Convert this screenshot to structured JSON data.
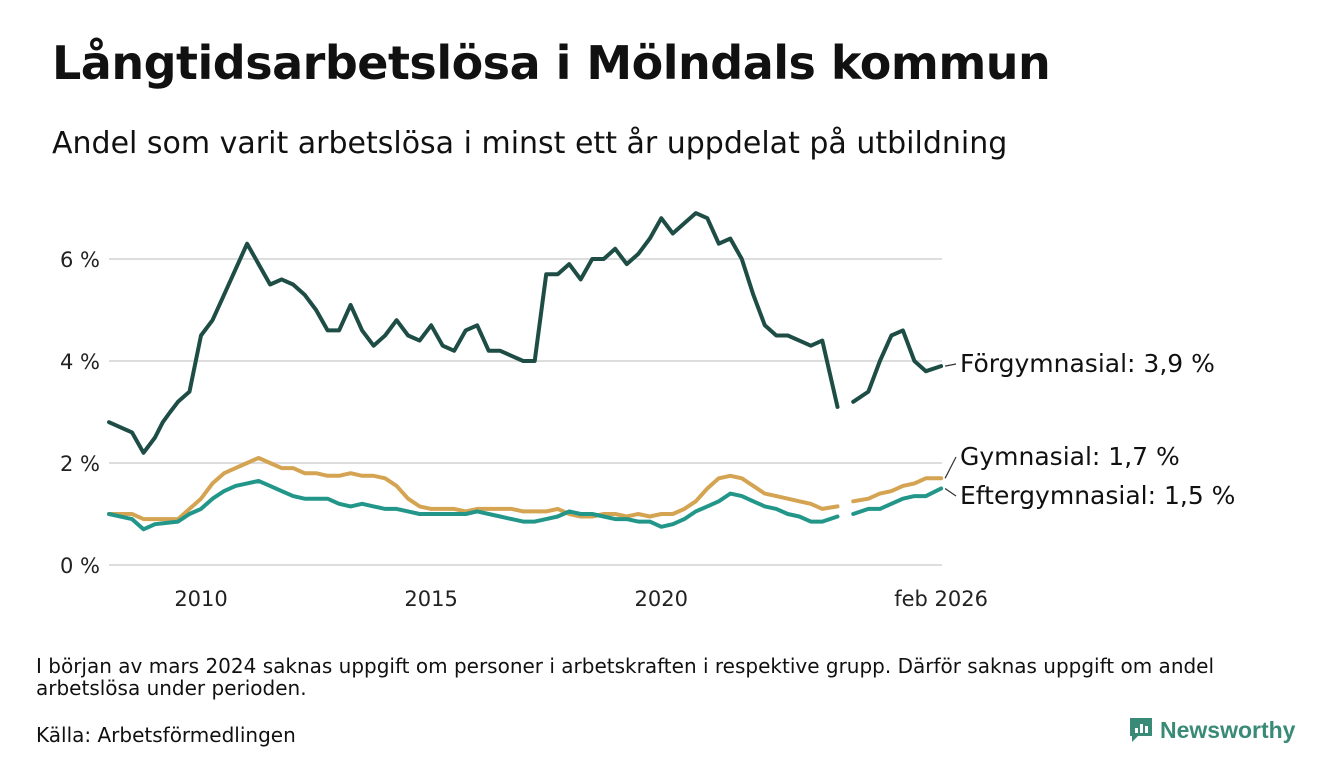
{
  "header": {
    "title": "Långtidsarbetslösa i Mölndals kommun",
    "subtitle": "Andel som varit arbetslösa i minst ett år uppdelat på utbildning"
  },
  "footer": {
    "note": "I början av mars 2024 saknas uppgift om personer i arbetskraften i respektive grupp. Därför saknas uppgift om andel arbetslösa under perioden.",
    "source": "Källa: Arbetsförmedlingen",
    "brand": "Newsworthy"
  },
  "colors": {
    "forgymnasial": "#1e4d46",
    "gymnasial": "#d4a452",
    "eftergymnasial": "#23968a",
    "grid": "#dddddd",
    "brand": "#3a8a78"
  },
  "chart_data": {
    "type": "line",
    "title": "Långtidsarbetslösa i Mölndals kommun",
    "xlabel": "",
    "ylabel": "",
    "xlim": [
      2008.0,
      2026.1
    ],
    "ylim": [
      0,
      7
    ],
    "yticks": [
      0,
      2,
      4,
      6
    ],
    "ytick_labels": [
      "0 %",
      "2 %",
      "4 %",
      "6 %"
    ],
    "xticks": [
      2010,
      2015,
      2020,
      2026.08
    ],
    "xtick_labels": [
      "2010",
      "2015",
      "2020",
      "feb 2026"
    ],
    "grid": true,
    "legend": "end-of-line labels",
    "gap": [
      2023.83,
      2024.17
    ],
    "series": [
      {
        "name": "Förgymnasial",
        "label": "Förgymnasial: 3,9 %",
        "color_key": "forgymnasial",
        "x": [
          2008.0,
          2008.5,
          2008.75,
          2009.0,
          2009.17,
          2009.33,
          2009.5,
          2009.75,
          2010.0,
          2010.25,
          2010.5,
          2010.75,
          2011.0,
          2011.25,
          2011.5,
          2011.75,
          2012.0,
          2012.25,
          2012.5,
          2012.75,
          2013.0,
          2013.25,
          2013.5,
          2013.75,
          2014.0,
          2014.25,
          2014.5,
          2014.75,
          2015.0,
          2015.25,
          2015.5,
          2015.75,
          2016.0,
          2016.25,
          2016.5,
          2016.75,
          2017.0,
          2017.25,
          2017.5,
          2017.75,
          2018.0,
          2018.25,
          2018.5,
          2018.75,
          2019.0,
          2019.25,
          2019.5,
          2019.75,
          2020.0,
          2020.25,
          2020.5,
          2020.75,
          2021.0,
          2021.25,
          2021.5,
          2021.75,
          2022.0,
          2022.25,
          2022.5,
          2022.75,
          2023.0,
          2023.25,
          2023.5,
          2023.83,
          2024.17,
          2024.5,
          2024.75,
          2025.0,
          2025.25,
          2025.5,
          2025.75,
          2026.08
        ],
        "values": [
          2.8,
          2.6,
          2.2,
          2.5,
          2.8,
          3.0,
          3.2,
          3.4,
          4.5,
          4.8,
          5.3,
          5.8,
          6.3,
          5.9,
          5.5,
          5.6,
          5.5,
          5.3,
          5.0,
          4.6,
          4.6,
          5.1,
          4.6,
          4.3,
          4.5,
          4.8,
          4.5,
          4.4,
          4.7,
          4.3,
          4.2,
          4.6,
          4.7,
          4.2,
          4.2,
          4.1,
          4.0,
          4.0,
          5.7,
          5.7,
          5.9,
          5.6,
          6.0,
          6.0,
          6.2,
          5.9,
          6.1,
          6.4,
          6.8,
          6.5,
          6.7,
          6.9,
          6.8,
          6.3,
          6.4,
          6.0,
          5.3,
          4.7,
          4.5,
          4.5,
          4.4,
          4.3,
          4.4,
          3.1,
          3.2,
          3.4,
          4.0,
          4.5,
          4.6,
          4.0,
          3.8,
          3.9
        ]
      },
      {
        "name": "Gymnasial",
        "label": "Gymnasial: 1,7 %",
        "color_key": "gymnasial",
        "x": [
          2008.0,
          2008.5,
          2008.75,
          2009.0,
          2009.5,
          2009.75,
          2010.0,
          2010.25,
          2010.5,
          2010.75,
          2011.0,
          2011.25,
          2011.5,
          2011.75,
          2012.0,
          2012.25,
          2012.5,
          2012.75,
          2013.0,
          2013.25,
          2013.5,
          2013.75,
          2014.0,
          2014.25,
          2014.5,
          2014.75,
          2015.0,
          2015.25,
          2015.5,
          2015.75,
          2016.0,
          2016.25,
          2016.5,
          2016.75,
          2017.0,
          2017.25,
          2017.5,
          2017.75,
          2018.0,
          2018.25,
          2018.5,
          2018.75,
          2019.0,
          2019.25,
          2019.5,
          2019.75,
          2020.0,
          2020.25,
          2020.5,
          2020.75,
          2021.0,
          2021.25,
          2021.5,
          2021.75,
          2022.0,
          2022.25,
          2022.5,
          2022.75,
          2023.0,
          2023.25,
          2023.5,
          2023.83,
          2024.17,
          2024.5,
          2024.75,
          2025.0,
          2025.25,
          2025.5,
          2025.75,
          2026.08
        ],
        "values": [
          1.0,
          1.0,
          0.9,
          0.9,
          0.9,
          1.1,
          1.3,
          1.6,
          1.8,
          1.9,
          2.0,
          2.1,
          2.0,
          1.9,
          1.9,
          1.8,
          1.8,
          1.75,
          1.75,
          1.8,
          1.75,
          1.75,
          1.7,
          1.55,
          1.3,
          1.15,
          1.1,
          1.1,
          1.1,
          1.05,
          1.1,
          1.1,
          1.1,
          1.1,
          1.05,
          1.05,
          1.05,
          1.1,
          1.0,
          0.95,
          0.95,
          1.0,
          1.0,
          0.95,
          1.0,
          0.95,
          1.0,
          1.0,
          1.1,
          1.25,
          1.5,
          1.7,
          1.75,
          1.7,
          1.55,
          1.4,
          1.35,
          1.3,
          1.25,
          1.2,
          1.1,
          1.15,
          1.25,
          1.3,
          1.4,
          1.45,
          1.55,
          1.6,
          1.7,
          1.7
        ]
      },
      {
        "name": "Eftergymnasial",
        "label": "Eftergymnasial: 1,5 %",
        "color_key": "eftergymnasial",
        "x": [
          2008.0,
          2008.5,
          2008.75,
          2009.0,
          2009.5,
          2009.75,
          2010.0,
          2010.25,
          2010.5,
          2010.75,
          2011.0,
          2011.25,
          2011.5,
          2011.75,
          2012.0,
          2012.25,
          2012.5,
          2012.75,
          2013.0,
          2013.25,
          2013.5,
          2013.75,
          2014.0,
          2014.25,
          2014.5,
          2014.75,
          2015.0,
          2015.25,
          2015.5,
          2015.75,
          2016.0,
          2016.25,
          2016.5,
          2016.75,
          2017.0,
          2017.25,
          2017.5,
          2017.75,
          2018.0,
          2018.25,
          2018.5,
          2018.75,
          2019.0,
          2019.25,
          2019.5,
          2019.75,
          2020.0,
          2020.25,
          2020.5,
          2020.75,
          2021.0,
          2021.25,
          2021.5,
          2021.75,
          2022.0,
          2022.25,
          2022.5,
          2022.75,
          2023.0,
          2023.25,
          2023.5,
          2023.83,
          2024.17,
          2024.5,
          2024.75,
          2025.0,
          2025.25,
          2025.5,
          2025.75,
          2026.08
        ],
        "values": [
          1.0,
          0.9,
          0.7,
          0.8,
          0.85,
          1.0,
          1.1,
          1.3,
          1.45,
          1.55,
          1.6,
          1.65,
          1.55,
          1.45,
          1.35,
          1.3,
          1.3,
          1.3,
          1.2,
          1.15,
          1.2,
          1.15,
          1.1,
          1.1,
          1.05,
          1.0,
          1.0,
          1.0,
          1.0,
          1.0,
          1.05,
          1.0,
          0.95,
          0.9,
          0.85,
          0.85,
          0.9,
          0.95,
          1.05,
          1.0,
          1.0,
          0.95,
          0.9,
          0.9,
          0.85,
          0.85,
          0.75,
          0.8,
          0.9,
          1.05,
          1.15,
          1.25,
          1.4,
          1.35,
          1.25,
          1.15,
          1.1,
          1.0,
          0.95,
          0.85,
          0.85,
          0.95,
          1.0,
          1.1,
          1.1,
          1.2,
          1.3,
          1.35,
          1.35,
          1.5
        ]
      }
    ]
  }
}
